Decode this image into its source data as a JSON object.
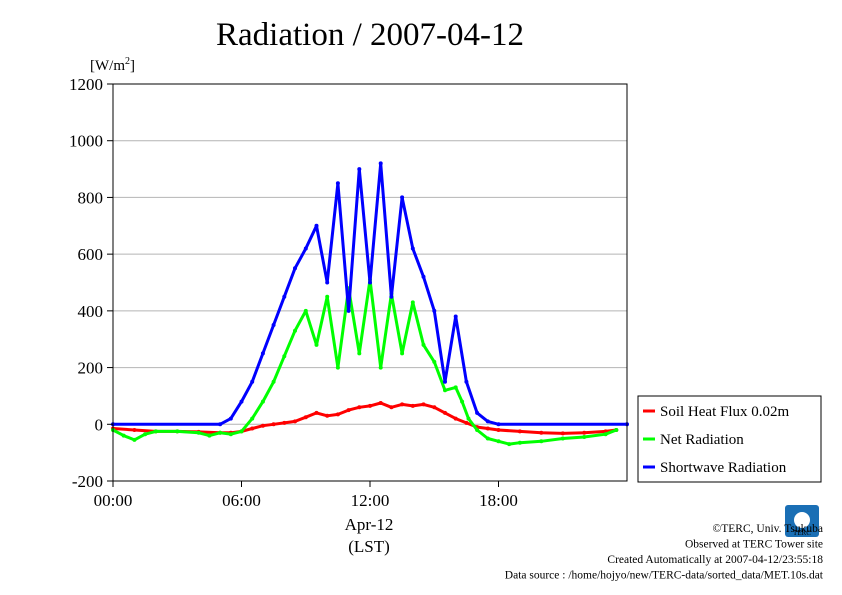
{
  "chart_data": {
    "type": "line",
    "title": "Radiation / 2007-04-12",
    "ylabel": "[W/m2]",
    "ylabel_base": "[W/m",
    "ylabel_sup": "2",
    "ylabel_close": "]",
    "xlabel_date": "Apr-12",
    "xlabel_zone": "(LST)",
    "xlim": [
      0,
      24
    ],
    "ylim": [
      -200,
      1200
    ],
    "yticks": [
      -200,
      0,
      200,
      400,
      600,
      800,
      1000,
      1200
    ],
    "ytick_labels": [
      "-200",
      "0",
      "200",
      "400",
      "600",
      "800",
      "1000",
      "1200"
    ],
    "xticks": [
      0,
      6,
      12,
      18
    ],
    "xtick_labels": [
      "00:00",
      "06:00",
      "12:00",
      "18:00"
    ],
    "grid": "horizontal",
    "legend_position": "right",
    "series": [
      {
        "name": "Soil Heat Flux 0.02m",
        "color": "#ff0000",
        "points": [
          [
            0,
            -15
          ],
          [
            1,
            -20
          ],
          [
            2,
            -25
          ],
          [
            3,
            -25
          ],
          [
            4,
            -27
          ],
          [
            5,
            -30
          ],
          [
            5.5,
            -30
          ],
          [
            6,
            -25
          ],
          [
            6.5,
            -15
          ],
          [
            7,
            -5
          ],
          [
            7.5,
            0
          ],
          [
            8,
            5
          ],
          [
            8.5,
            10
          ],
          [
            9,
            25
          ],
          [
            9.5,
            40
          ],
          [
            10,
            30
          ],
          [
            10.5,
            35
          ],
          [
            11,
            50
          ],
          [
            11.5,
            60
          ],
          [
            12,
            65
          ],
          [
            12.5,
            75
          ],
          [
            13,
            60
          ],
          [
            13.5,
            70
          ],
          [
            14,
            65
          ],
          [
            14.5,
            70
          ],
          [
            15,
            60
          ],
          [
            15.5,
            40
          ],
          [
            16,
            20
          ],
          [
            16.5,
            5
          ],
          [
            17,
            -10
          ],
          [
            17.5,
            -15
          ],
          [
            18,
            -20
          ],
          [
            19,
            -25
          ],
          [
            20,
            -30
          ],
          [
            21,
            -32
          ],
          [
            22,
            -30
          ],
          [
            23,
            -25
          ],
          [
            23.5,
            -20
          ]
        ]
      },
      {
        "name": "Net Radiation",
        "color": "#00ff00",
        "points": [
          [
            0,
            -20
          ],
          [
            0.5,
            -40
          ],
          [
            1,
            -55
          ],
          [
            1.5,
            -35
          ],
          [
            2,
            -25
          ],
          [
            3,
            -25
          ],
          [
            4,
            -30
          ],
          [
            4.5,
            -40
          ],
          [
            5,
            -30
          ],
          [
            5.5,
            -35
          ],
          [
            6,
            -25
          ],
          [
            6.5,
            20
          ],
          [
            7,
            80
          ],
          [
            7.5,
            150
          ],
          [
            8,
            240
          ],
          [
            8.5,
            330
          ],
          [
            9,
            400
          ],
          [
            9.5,
            280
          ],
          [
            10,
            450
          ],
          [
            10.5,
            200
          ],
          [
            11,
            480
          ],
          [
            11.5,
            250
          ],
          [
            12,
            510
          ],
          [
            12.5,
            200
          ],
          [
            13,
            460
          ],
          [
            13.5,
            250
          ],
          [
            14,
            430
          ],
          [
            14.5,
            280
          ],
          [
            15,
            220
          ],
          [
            15.5,
            120
          ],
          [
            16,
            130
          ],
          [
            16.3,
            80
          ],
          [
            16.6,
            20
          ],
          [
            17,
            -20
          ],
          [
            17.5,
            -50
          ],
          [
            18,
            -60
          ],
          [
            18.5,
            -70
          ],
          [
            19,
            -65
          ],
          [
            20,
            -60
          ],
          [
            21,
            -50
          ],
          [
            22,
            -45
          ],
          [
            23,
            -35
          ],
          [
            23.5,
            -20
          ]
        ]
      },
      {
        "name": "Shortwave Radiation",
        "color": "#0000ff",
        "points": [
          [
            0,
            0
          ],
          [
            5,
            0
          ],
          [
            5.5,
            20
          ],
          [
            6,
            80
          ],
          [
            6.5,
            150
          ],
          [
            7,
            250
          ],
          [
            7.5,
            350
          ],
          [
            8,
            450
          ],
          [
            8.5,
            550
          ],
          [
            9,
            620
          ],
          [
            9.5,
            700
          ],
          [
            10,
            500
          ],
          [
            10.5,
            850
          ],
          [
            11,
            400
          ],
          [
            11.5,
            900
          ],
          [
            12,
            500
          ],
          [
            12.5,
            920
          ],
          [
            13,
            450
          ],
          [
            13.5,
            800
          ],
          [
            14,
            620
          ],
          [
            14.5,
            520
          ],
          [
            15,
            400
          ],
          [
            15.5,
            150
          ],
          [
            16,
            380
          ],
          [
            16.5,
            150
          ],
          [
            17,
            40
          ],
          [
            17.5,
            10
          ],
          [
            18,
            0
          ],
          [
            24,
            0
          ]
        ]
      }
    ]
  },
  "credits": [
    "©TERC, Univ. Tsukuba",
    "Observed at TERC Tower site",
    "Created Automatically at 2007-04-12/23:55:18",
    "Data source : /home/hojyo/new/TERC-data/sorted_data/MET.10s.dat"
  ],
  "logo_text": "TERC"
}
